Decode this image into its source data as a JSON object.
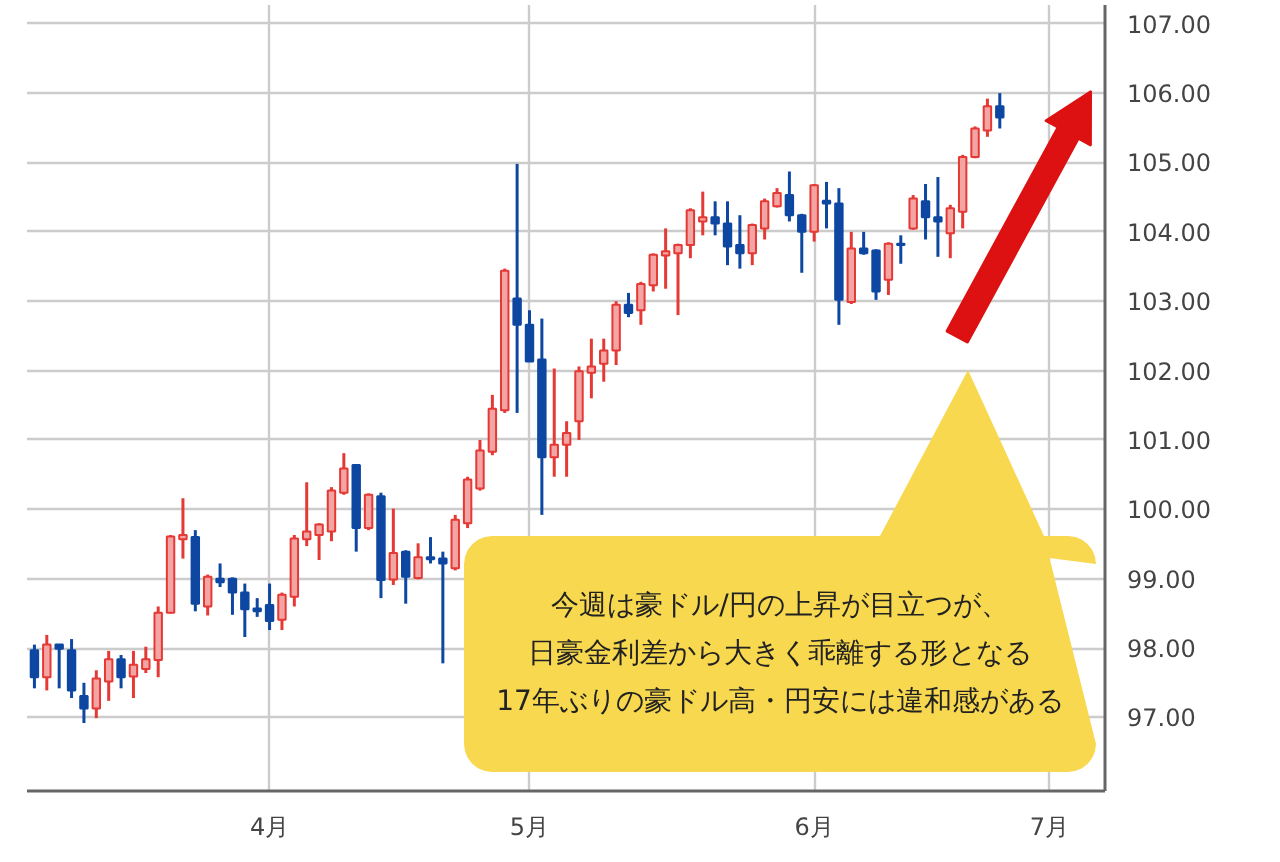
{
  "chart_data": {
    "type": "candlestick",
    "categories": [
      null,
      null,
      null,
      null,
      null,
      null,
      null,
      null,
      null,
      null,
      null,
      null,
      null,
      null,
      null,
      null,
      null,
      null,
      null,
      "4月",
      null,
      null,
      null,
      null,
      null,
      null,
      null,
      null,
      null,
      null,
      null,
      null,
      null,
      null,
      null,
      null,
      null,
      null,
      null,
      null,
      "5月",
      null,
      null,
      null,
      null,
      null,
      null,
      null,
      null,
      null,
      null,
      null,
      null,
      null,
      null,
      null,
      null,
      null,
      null,
      null,
      null,
      null,
      null,
      "6月",
      null,
      null,
      null,
      null,
      null,
      null,
      null,
      null,
      null,
      null,
      null,
      null,
      null,
      null,
      null,
      null,
      null,
      null,
      "7月",
      null,
      null,
      null,
      null
    ],
    "ohlc": [
      [
        97.97,
        98.05,
        97.42,
        97.58
      ],
      [
        97.58,
        98.19,
        97.39,
        98.05
      ],
      [
        98.05,
        98.05,
        97.42,
        97.99
      ],
      [
        97.97,
        98.13,
        97.28,
        97.39
      ],
      [
        97.31,
        97.5,
        96.92,
        97.13
      ],
      [
        97.13,
        97.68,
        96.99,
        97.56
      ],
      [
        97.52,
        97.96,
        97.24,
        97.84
      ],
      [
        97.84,
        97.9,
        97.42,
        97.58
      ],
      [
        97.59,
        97.96,
        97.28,
        97.76
      ],
      [
        97.7,
        98.02,
        97.64,
        97.84
      ],
      [
        97.83,
        98.6,
        97.58,
        98.51
      ],
      [
        98.51,
        99.63,
        98.5,
        99.61
      ],
      [
        99.57,
        100.16,
        99.29,
        99.63
      ],
      [
        99.6,
        99.7,
        98.53,
        98.64
      ],
      [
        98.6,
        99.06,
        98.47,
        99.03
      ],
      [
        99.0,
        99.22,
        98.88,
        98.95
      ],
      [
        99.0,
        99.02,
        98.48,
        98.8
      ],
      [
        98.8,
        98.93,
        98.16,
        98.56
      ],
      [
        98.57,
        98.72,
        98.45,
        98.53
      ],
      [
        98.62,
        98.93,
        98.26,
        98.39
      ],
      [
        98.41,
        98.8,
        98.26,
        98.77
      ],
      [
        98.74,
        99.63,
        98.6,
        99.58
      ],
      [
        99.57,
        100.39,
        99.47,
        99.68
      ],
      [
        99.63,
        99.8,
        99.27,
        99.78
      ],
      [
        99.68,
        100.32,
        99.54,
        100.27
      ],
      [
        100.24,
        100.81,
        100.21,
        100.59
      ],
      [
        100.64,
        100.64,
        99.39,
        99.73
      ],
      [
        99.73,
        100.23,
        99.7,
        100.21
      ],
      [
        100.19,
        100.24,
        98.72,
        98.98
      ],
      [
        98.99,
        100.01,
        98.91,
        99.37
      ],
      [
        99.39,
        99.41,
        98.64,
        99.03
      ],
      [
        99.01,
        99.51,
        98.99,
        99.31
      ],
      [
        99.31,
        99.6,
        99.22,
        99.28
      ],
      [
        99.29,
        99.39,
        97.78,
        99.22
      ],
      [
        99.15,
        99.92,
        99.12,
        99.85
      ],
      [
        99.8,
        100.47,
        99.73,
        100.43
      ],
      [
        100.3,
        101.0,
        100.27,
        100.85
      ],
      [
        100.83,
        101.65,
        100.78,
        101.45
      ],
      [
        101.43,
        103.47,
        101.39,
        103.44
      ],
      [
        103.04,
        104.98,
        101.39,
        102.66
      ],
      [
        102.66,
        102.87,
        102.13,
        102.13
      ],
      [
        102.16,
        102.75,
        99.92,
        100.75
      ],
      [
        100.75,
        102.03,
        100.47,
        100.93
      ],
      [
        100.93,
        101.27,
        100.47,
        101.1
      ],
      [
        101.27,
        102.06,
        101.0,
        101.99
      ],
      [
        101.97,
        102.46,
        101.6,
        102.06
      ],
      [
        102.1,
        102.46,
        101.84,
        102.29
      ],
      [
        102.29,
        103.0,
        102.08,
        102.95
      ],
      [
        102.95,
        103.12,
        102.77,
        102.83
      ],
      [
        102.87,
        103.28,
        102.66,
        103.25
      ],
      [
        103.23,
        103.69,
        103.14,
        103.67
      ],
      [
        103.66,
        104.05,
        103.18,
        103.72
      ],
      [
        103.69,
        103.83,
        102.8,
        103.81
      ],
      [
        103.81,
        104.34,
        103.62,
        104.31
      ],
      [
        104.15,
        104.58,
        103.95,
        104.21
      ],
      [
        104.21,
        104.44,
        103.95,
        104.12
      ],
      [
        104.12,
        104.44,
        103.52,
        103.79
      ],
      [
        103.81,
        104.24,
        103.47,
        103.69
      ],
      [
        103.69,
        104.12,
        103.52,
        104.1
      ],
      [
        104.05,
        104.48,
        103.89,
        104.44
      ],
      [
        104.37,
        104.63,
        104.35,
        104.56
      ],
      [
        104.53,
        104.87,
        104.15,
        104.24
      ],
      [
        104.24,
        104.26,
        103.41,
        104.0
      ],
      [
        104.0,
        104.69,
        103.86,
        104.67
      ],
      [
        104.45,
        104.72,
        104.05,
        104.41
      ],
      [
        104.41,
        104.63,
        102.66,
        103.02
      ],
      [
        102.99,
        104.0,
        102.96,
        103.76
      ],
      [
        103.76,
        104.0,
        103.67,
        103.69
      ],
      [
        103.73,
        103.75,
        103.02,
        103.14
      ],
      [
        103.31,
        103.85,
        103.09,
        103.83
      ],
      [
        103.83,
        103.95,
        103.54,
        103.81
      ],
      [
        104.05,
        104.53,
        104.03,
        104.48
      ],
      [
        104.44,
        104.69,
        103.89,
        104.21
      ],
      [
        104.21,
        104.79,
        103.64,
        104.15
      ],
      [
        103.98,
        104.39,
        103.62,
        104.34
      ],
      [
        104.29,
        105.11,
        104.05,
        105.08
      ],
      [
        105.08,
        105.52,
        105.06,
        105.49
      ],
      [
        105.46,
        105.92,
        105.37,
        105.81
      ],
      [
        105.81,
        106.0,
        105.49,
        105.65
      ],
      null,
      null,
      null,
      null,
      null,
      null,
      null,
      null
    ],
    "colors": [
      "#0d47a1",
      "#e53935",
      "#0d47a1",
      "#0d47a1",
      "#0d47a1",
      "#e53935",
      "#e53935",
      "#0d47a1",
      "#e53935",
      "#e53935",
      "#e53935",
      "#e53935",
      "#e53935",
      "#0d47a1",
      "#e53935",
      "#0d47a1",
      "#0d47a1",
      "#0d47a1",
      "#0d47a1",
      "#0d47a1",
      "#e53935",
      "#e53935",
      "#e53935",
      "#e53935",
      "#e53935",
      "#e53935",
      "#0d47a1",
      "#e53935",
      "#0d47a1",
      "#e53935",
      "#0d47a1",
      "#e53935",
      "#0d47a1",
      "#0d47a1",
      "#e53935",
      "#e53935",
      "#e53935",
      "#e53935",
      "#e53935",
      "#0d47a1",
      "#0d47a1",
      "#0d47a1",
      "#e53935",
      "#e53935",
      "#e53935",
      "#e53935",
      "#e53935",
      "#e53935",
      "#0d47a1",
      "#e53935",
      "#e53935",
      "#e53935",
      "#e53935",
      "#e53935",
      "#e53935",
      "#0d47a1",
      "#0d47a1",
      "#0d47a1",
      "#e53935",
      "#e53935",
      "#e53935",
      "#0d47a1",
      "#0d47a1",
      "#e53935",
      "#0d47a1",
      "#0d47a1",
      "#e53935",
      "#0d47a1",
      "#0d47a1",
      "#e53935",
      "#0d47a1",
      "#e53935",
      "#0d47a1",
      "#0d47a1",
      "#e53935",
      "#e53935",
      "#e53935",
      "#e53935",
      "#0d47a1",
      null,
      null,
      null,
      null,
      null,
      null,
      null,
      null
    ],
    "ylim": [
      95.94,
      107.27
    ],
    "yticks": [
      {
        "value": 97,
        "label": "97.00"
      },
      {
        "value": 98,
        "label": "98.00"
      },
      {
        "value": 99,
        "label": "99.00"
      },
      {
        "value": 100,
        "label": "100.00"
      },
      {
        "value": 101,
        "label": "101.00"
      },
      {
        "value": 102,
        "label": "102.00"
      },
      {
        "value": 103,
        "label": "103.00"
      },
      {
        "value": 104,
        "label": "104.00"
      },
      {
        "value": 105,
        "label": "105.00"
      },
      {
        "value": 106,
        "label": "106.00"
      },
      {
        "value": 107,
        "label": "107.00"
      }
    ],
    "grid": true,
    "annotations": [
      "今週は豪ドル/円の上昇が目立つが、",
      "日豪金利差から大きく乖離する形となる",
      "17年ぶりの豪ドル高・円安には違和感がある"
    ]
  }
}
